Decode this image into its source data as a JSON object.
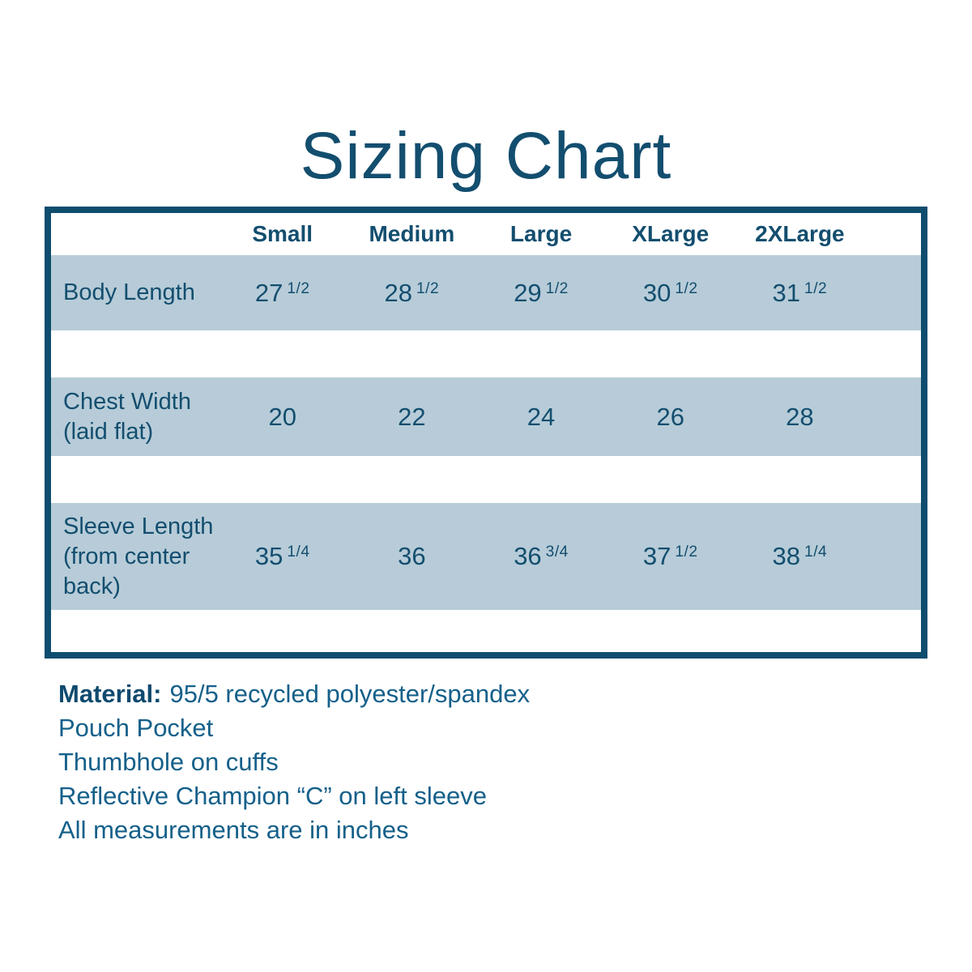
{
  "page": {
    "title": "Sizing Chart"
  },
  "colors": {
    "navy_text": "#134e6f",
    "border": "#0f4d6f",
    "row_background": "#b7ccd8",
    "notes_text": "#15608a",
    "page_background": "#ffffff"
  },
  "table": {
    "columns": [
      "Small",
      "Medium",
      "Large",
      "XLarge",
      "2XLarge"
    ],
    "rows": [
      {
        "label": "Body Length",
        "values": [
          {
            "whole": "27",
            "frac": "1/2"
          },
          {
            "whole": "28",
            "frac": "1/2"
          },
          {
            "whole": "29",
            "frac": "1/2"
          },
          {
            "whole": "30",
            "frac": "1/2"
          },
          {
            "whole": "31",
            "frac": "1/2"
          }
        ]
      },
      {
        "label": "Chest Width (laid flat)",
        "values": [
          {
            "whole": "20",
            "frac": ""
          },
          {
            "whole": "22",
            "frac": ""
          },
          {
            "whole": "24",
            "frac": ""
          },
          {
            "whole": "26",
            "frac": ""
          },
          {
            "whole": "28",
            "frac": ""
          }
        ]
      },
      {
        "label": "Sleeve Length (from center back)",
        "values": [
          {
            "whole": "35",
            "frac": "1/4"
          },
          {
            "whole": "36",
            "frac": ""
          },
          {
            "whole": "36",
            "frac": "3/4"
          },
          {
            "whole": "37",
            "frac": "1/2"
          },
          {
            "whole": "38",
            "frac": "1/4"
          }
        ]
      }
    ]
  },
  "notes": {
    "material_label": "Material:",
    "material_value": "95/5 recycled polyester/spandex",
    "lines": [
      "Pouch Pocket",
      "Thumbhole on cuffs",
      "Reflective Champion “C” on left sleeve",
      "All measurements are in inches"
    ]
  },
  "chart_data": {
    "type": "table",
    "title": "Sizing Chart",
    "columns": [
      "Small",
      "Medium",
      "Large",
      "XLarge",
      "2XLarge"
    ],
    "rows": [
      {
        "label": "Body Length",
        "values": [
          27.5,
          28.5,
          29.5,
          30.5,
          31.5
        ]
      },
      {
        "label": "Chest Width (laid flat)",
        "values": [
          20,
          22,
          24,
          26,
          28
        ]
      },
      {
        "label": "Sleeve Length (from center back)",
        "values": [
          35.25,
          36,
          36.75,
          37.5,
          38.25
        ]
      }
    ],
    "units": "inches",
    "notes": [
      "Material: 95/5 recycled polyester/spandex",
      "Pouch Pocket",
      "Thumbhole on cuffs",
      "Reflective Champion “C” on left sleeve",
      "All measurements are in inches"
    ]
  }
}
